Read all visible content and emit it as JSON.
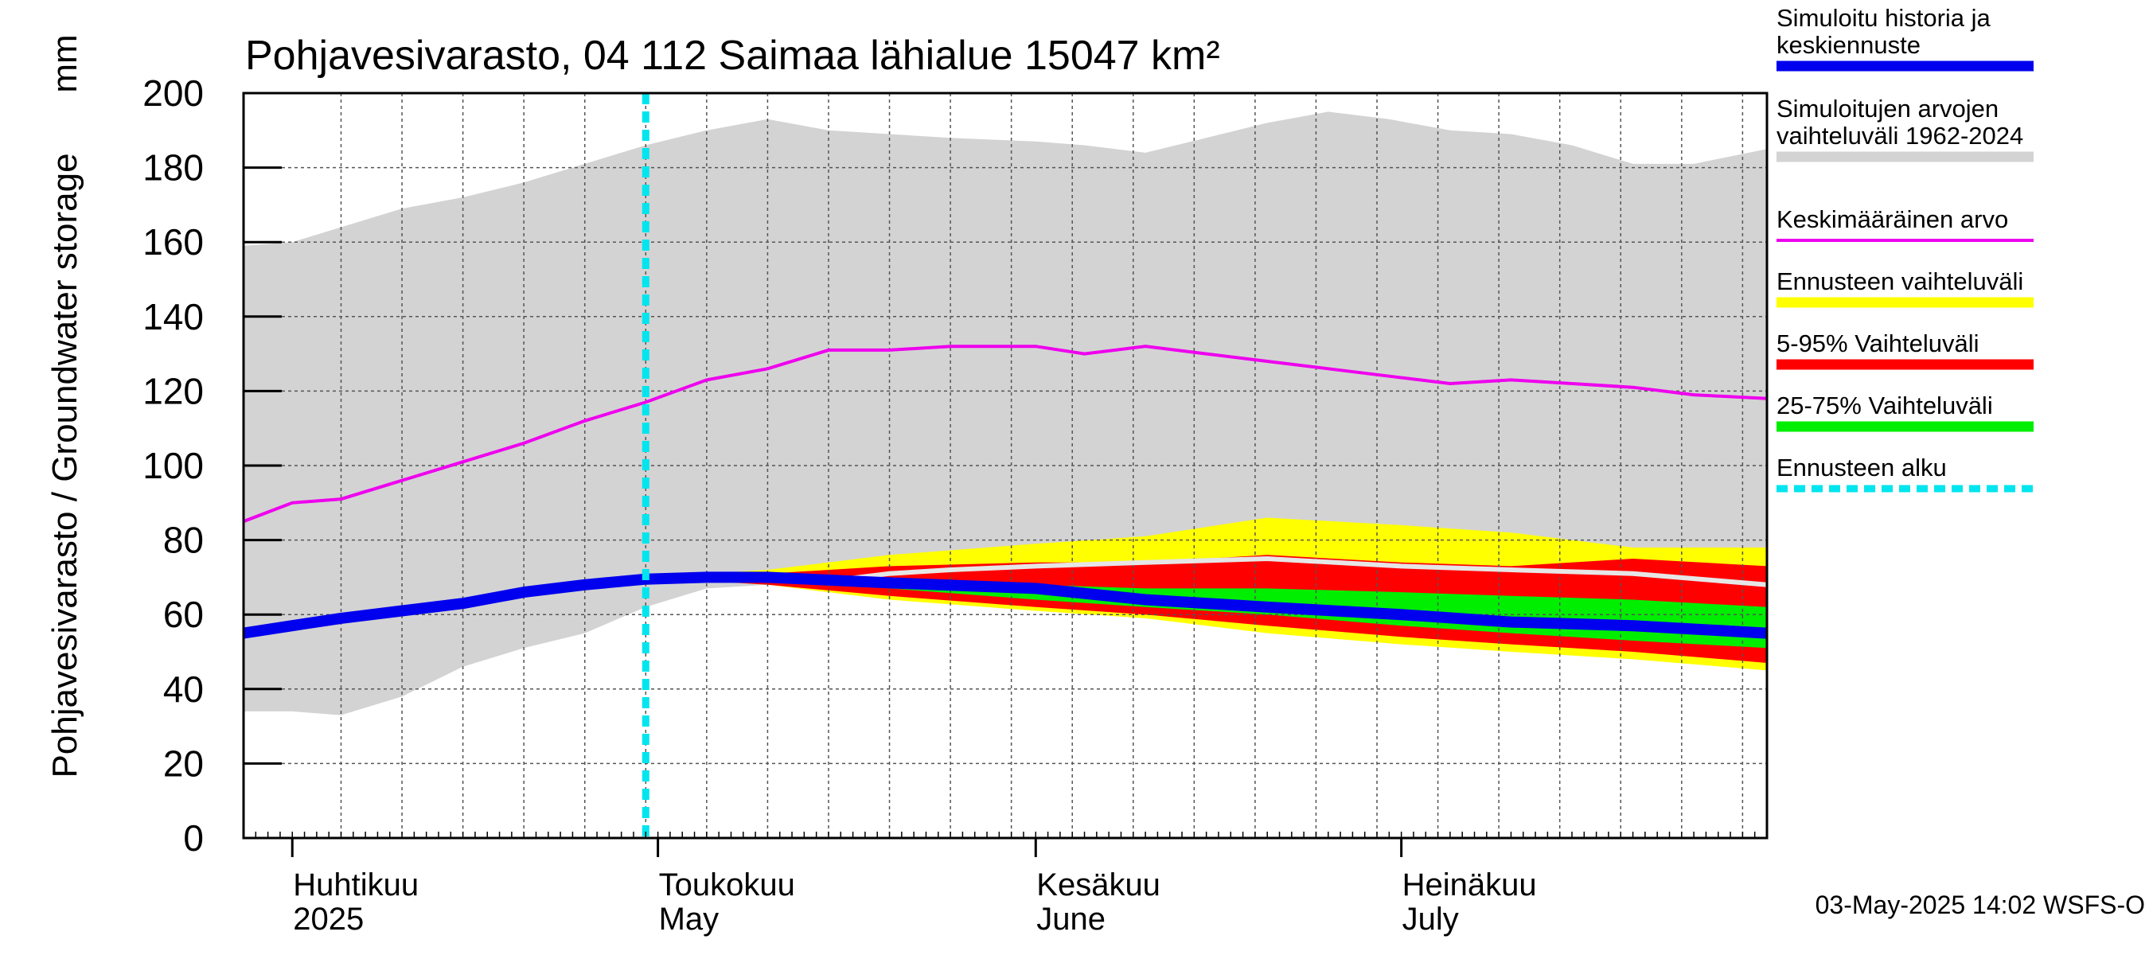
{
  "chart_data": {
    "type": "area",
    "title": "Pohjavesivarasto, 04 112 Saimaa lähialue 15047 km²",
    "ylabel": "Pohjavesivarasto / Groundwater storage",
    "yunit": "mm",
    "ylim": [
      0,
      200
    ],
    "yticks": [
      0,
      20,
      40,
      60,
      80,
      100,
      120,
      140,
      160,
      180,
      200
    ],
    "xlim": [
      "2025-03-28",
      "2025-07-31"
    ],
    "grid": true,
    "legend_position": "right",
    "month_labels": [
      {
        "fi": "Huhtikuu",
        "en": "2025",
        "date": "2025-04-01"
      },
      {
        "fi": "Toukokuu",
        "en": "May",
        "date": "2025-05-01"
      },
      {
        "fi": "Kesäkuu",
        "en": "June",
        "date": "2025-06-01"
      },
      {
        "fi": "Heinäkuu",
        "en": "July",
        "date": "2025-07-01"
      }
    ],
    "forecast_start": "2025-04-30",
    "footer": "03-May-2025 14:02 WSFS-O",
    "legend": [
      {
        "key": "history",
        "label": [
          "Simuloitu historia ja",
          "keskiennuste"
        ],
        "color": "#0000ee",
        "style": "thick"
      },
      {
        "key": "range",
        "label": [
          "Simuloitujen arvojen",
          "vaihteluväli 1962-2024"
        ],
        "color": "#d3d3d3",
        "style": "thick"
      },
      {
        "key": "mean",
        "label": [
          "Keskimääräinen arvo"
        ],
        "color": "#ee00ee",
        "style": "thin"
      },
      {
        "key": "fc_range",
        "label": [
          "Ennusteen vaihteluväli"
        ],
        "color": "#ffff00",
        "style": "thick"
      },
      {
        "key": "p5_95",
        "label": [
          "5-95% Vaihteluväli"
        ],
        "color": "#ff0000",
        "style": "thick"
      },
      {
        "key": "p25_75",
        "label": [
          "25-75% Vaihteluväli"
        ],
        "color": "#00ee00",
        "style": "thick"
      },
      {
        "key": "fc_start",
        "label": [
          "Ennusteen alku"
        ],
        "color": "#00e5ee",
        "style": "dotted"
      }
    ],
    "series": {
      "range_band": {
        "x": [
          "2025-03-28",
          "2025-04-01",
          "2025-04-05",
          "2025-04-10",
          "2025-04-15",
          "2025-04-20",
          "2025-04-25",
          "2025-04-30",
          "2025-05-05",
          "2025-05-10",
          "2025-05-15",
          "2025-05-20",
          "2025-05-25",
          "2025-06-01",
          "2025-06-05",
          "2025-06-10",
          "2025-06-15",
          "2025-06-20",
          "2025-06-25",
          "2025-06-30",
          "2025-07-05",
          "2025-07-10",
          "2025-07-15",
          "2025-07-20",
          "2025-07-25",
          "2025-07-31"
        ],
        "lower": [
          34,
          34,
          33,
          38,
          46,
          51,
          55,
          62,
          67,
          68,
          70,
          71,
          72,
          72,
          73,
          73,
          74,
          74,
          75,
          75,
          75,
          76,
          76,
          76,
          76,
          76
        ],
        "upper": [
          159,
          160,
          164,
          169,
          172,
          176,
          181,
          186,
          190,
          193,
          190,
          189,
          188,
          187,
          186,
          184,
          188,
          192,
          195,
          193,
          190,
          189,
          186,
          181,
          181,
          185
        ]
      },
      "fc_range": {
        "x": [
          "2025-04-30",
          "2025-05-10",
          "2025-05-20",
          "2025-06-01",
          "2025-06-10",
          "2025-06-20",
          "2025-07-01",
          "2025-07-10",
          "2025-07-20",
          "2025-07-31"
        ],
        "lower": [
          70,
          68,
          64,
          61,
          59,
          55,
          52,
          50,
          48,
          45
        ],
        "upper": [
          70,
          72,
          76,
          79,
          81,
          86,
          84,
          82,
          78,
          78
        ]
      },
      "p5_95": {
        "x": [
          "2025-04-30",
          "2025-05-10",
          "2025-05-20",
          "2025-06-01",
          "2025-06-10",
          "2025-06-20",
          "2025-07-01",
          "2025-07-10",
          "2025-07-20",
          "2025-07-31"
        ],
        "lower": [
          70,
          68,
          65,
          62,
          60,
          57,
          54,
          52,
          50,
          47
        ],
        "upper": [
          70,
          71,
          73,
          74,
          74,
          76,
          74,
          73,
          75,
          73
        ]
      },
      "p25_75": {
        "x": [
          "2025-04-30",
          "2025-05-10",
          "2025-05-20",
          "2025-06-01",
          "2025-06-10",
          "2025-06-20",
          "2025-07-01",
          "2025-07-10",
          "2025-07-20",
          "2025-07-31"
        ],
        "lower": [
          70,
          69,
          67,
          64,
          62,
          60,
          57,
          55,
          53,
          51
        ],
        "upper": [
          70,
          70,
          69,
          68,
          67,
          67,
          66,
          65,
          64,
          62
        ]
      },
      "history_median": {
        "x": [
          "2025-03-28",
          "2025-04-01",
          "2025-04-05",
          "2025-04-10",
          "2025-04-15",
          "2025-04-20",
          "2025-04-25",
          "2025-04-30",
          "2025-05-05",
          "2025-05-10",
          "2025-05-20",
          "2025-06-01",
          "2025-06-10",
          "2025-06-20",
          "2025-07-01",
          "2025-07-10",
          "2025-07-20",
          "2025-07-31"
        ],
        "y": [
          55,
          57,
          59,
          61,
          63,
          66,
          68,
          69.5,
          70,
          70,
          68.5,
          67,
          64,
          62,
          60,
          58,
          57,
          55
        ]
      },
      "mean": {
        "x": [
          "2025-03-28",
          "2025-04-01",
          "2025-04-05",
          "2025-04-10",
          "2025-04-15",
          "2025-04-20",
          "2025-04-25",
          "2025-04-30",
          "2025-05-05",
          "2025-05-10",
          "2025-05-15",
          "2025-05-20",
          "2025-05-25",
          "2025-06-01",
          "2025-06-05",
          "2025-06-10",
          "2025-06-15",
          "2025-06-20",
          "2025-06-25",
          "2025-06-30",
          "2025-07-05",
          "2025-07-10",
          "2025-07-15",
          "2025-07-20",
          "2025-07-25",
          "2025-07-31"
        ],
        "y": [
          85,
          90,
          91,
          96,
          101,
          106,
          112,
          117,
          123,
          126,
          131,
          131,
          132,
          132,
          130,
          132,
          130,
          128,
          126,
          124,
          122,
          123,
          122,
          121,
          119,
          118
        ]
      },
      "range_center": {
        "x": [
          "2025-05-15",
          "2025-05-20",
          "2025-05-25",
          "2025-06-01",
          "2025-06-10",
          "2025-06-20",
          "2025-07-01",
          "2025-07-10",
          "2025-07-20",
          "2025-07-31"
        ],
        "y": [
          69,
          71,
          72,
          73,
          74,
          75,
          73,
          72,
          71,
          68
        ]
      }
    }
  }
}
